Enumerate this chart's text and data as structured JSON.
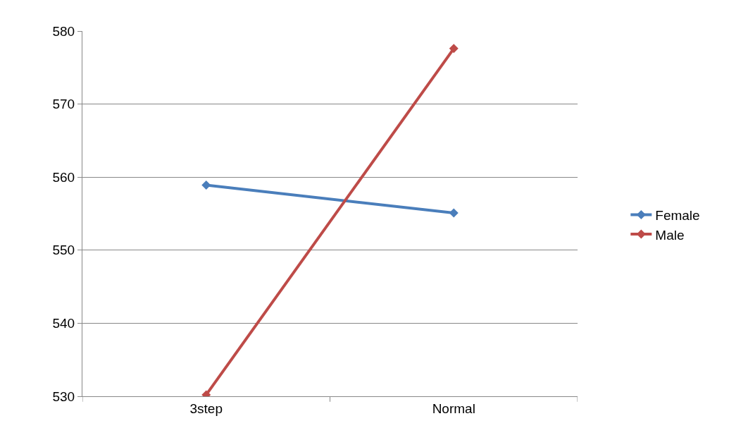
{
  "chart_data": {
    "type": "line",
    "categories": [
      "3step",
      "Normal"
    ],
    "series": [
      {
        "name": "Female",
        "color": "#4a7ebb",
        "values": [
          558.9,
          555.1
        ]
      },
      {
        "name": "Male",
        "color": "#be4b48",
        "values": [
          530.2,
          577.6
        ]
      }
    ],
    "ylim": [
      530,
      580
    ],
    "yticks": [
      530,
      540,
      550,
      560,
      570,
      580
    ],
    "grid": "y",
    "legend": "right",
    "marker": "diamond",
    "line_style": "solid"
  }
}
